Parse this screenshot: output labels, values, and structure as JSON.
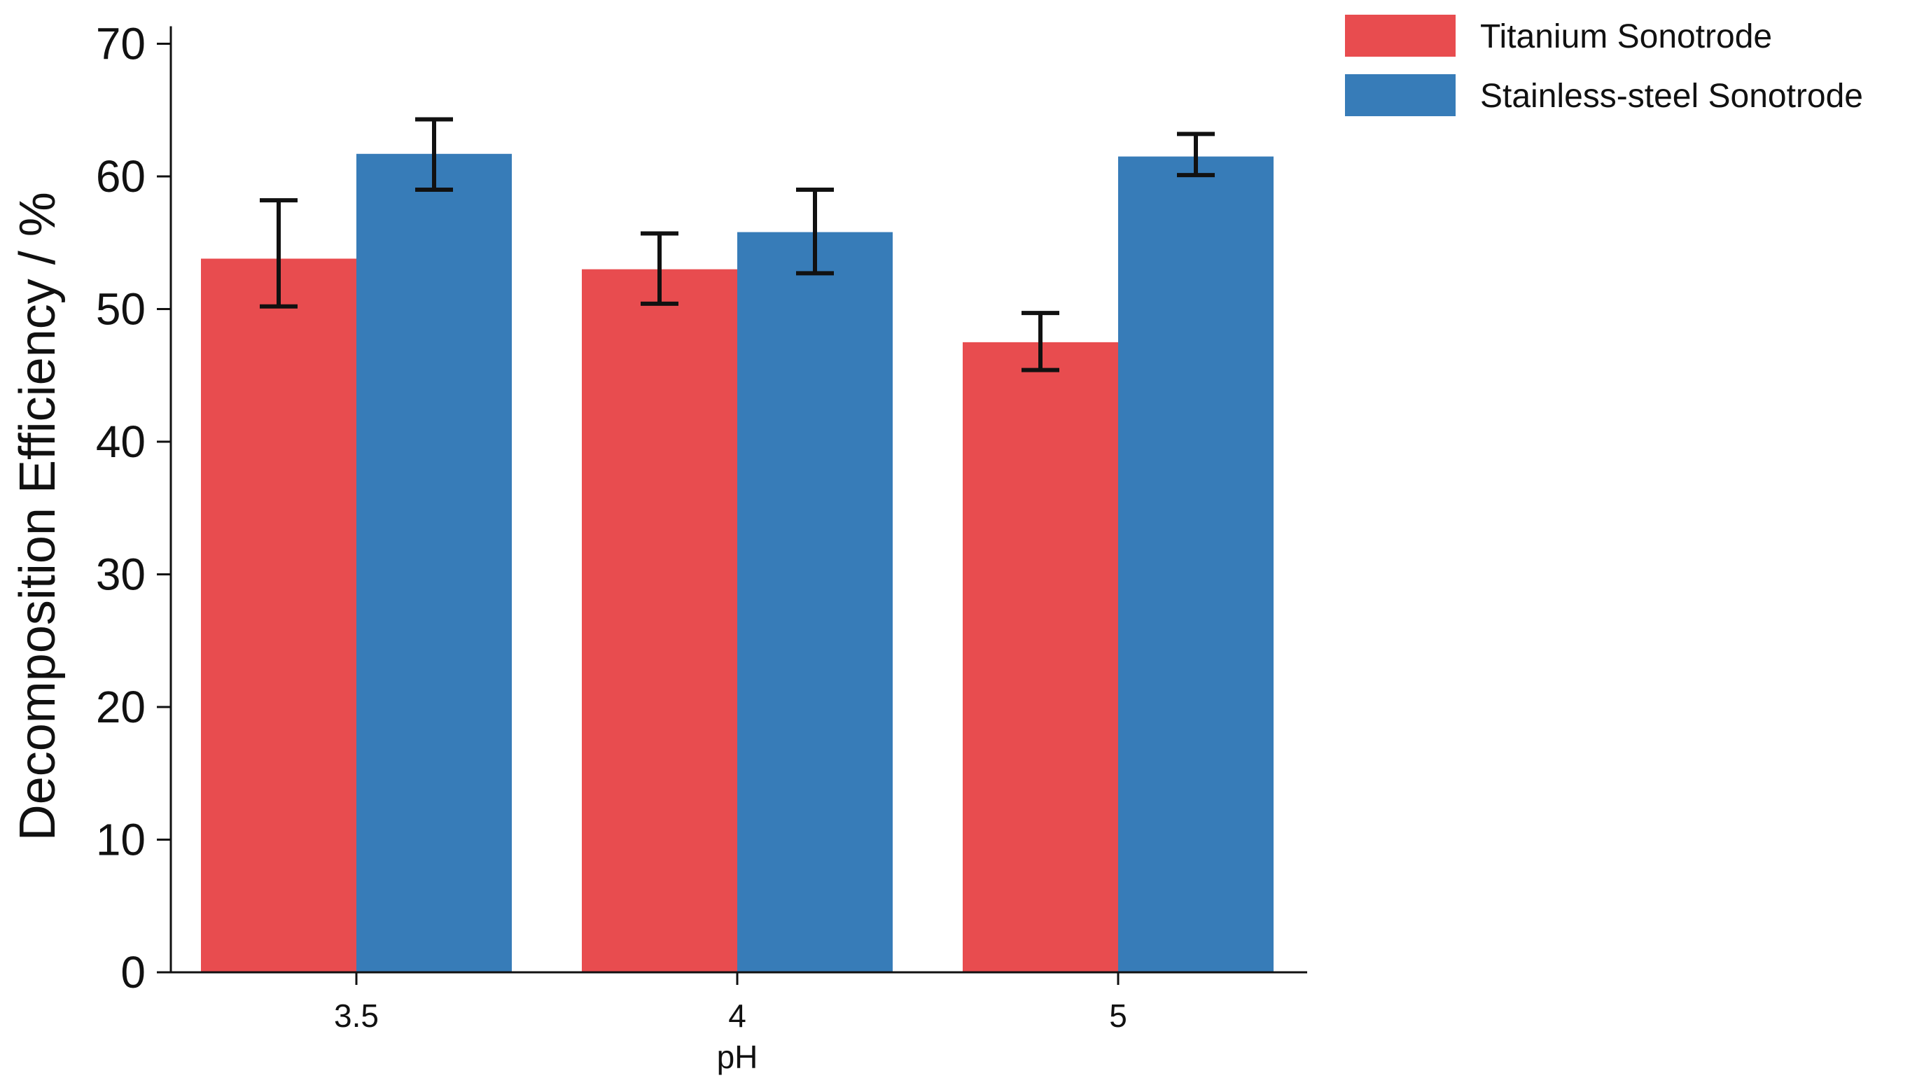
{
  "chart_data": {
    "type": "bar",
    "title": "",
    "xlabel": "pH",
    "ylabel": "Decomposition Efficiency / %",
    "categories": [
      "3.5",
      "4",
      "5"
    ],
    "ylim": [
      0,
      70
    ],
    "yticks": [
      0,
      10,
      20,
      30,
      40,
      50,
      60,
      70
    ],
    "grid": false,
    "legend_position": "top-right",
    "series": [
      {
        "name": "Titanium Sonotrode",
        "color": "#e84c4f",
        "values": [
          53.8,
          53.0,
          47.5
        ],
        "error_low": [
          50.2,
          50.4,
          45.4
        ],
        "error_high": [
          58.2,
          55.7,
          49.7
        ]
      },
      {
        "name": "Stainless-steel Sonotrode",
        "color": "#377cb8",
        "values": [
          61.7,
          55.8,
          61.5
        ],
        "error_low": [
          59.0,
          52.7,
          60.1
        ],
        "error_high": [
          64.3,
          59.0,
          63.2
        ]
      }
    ]
  }
}
